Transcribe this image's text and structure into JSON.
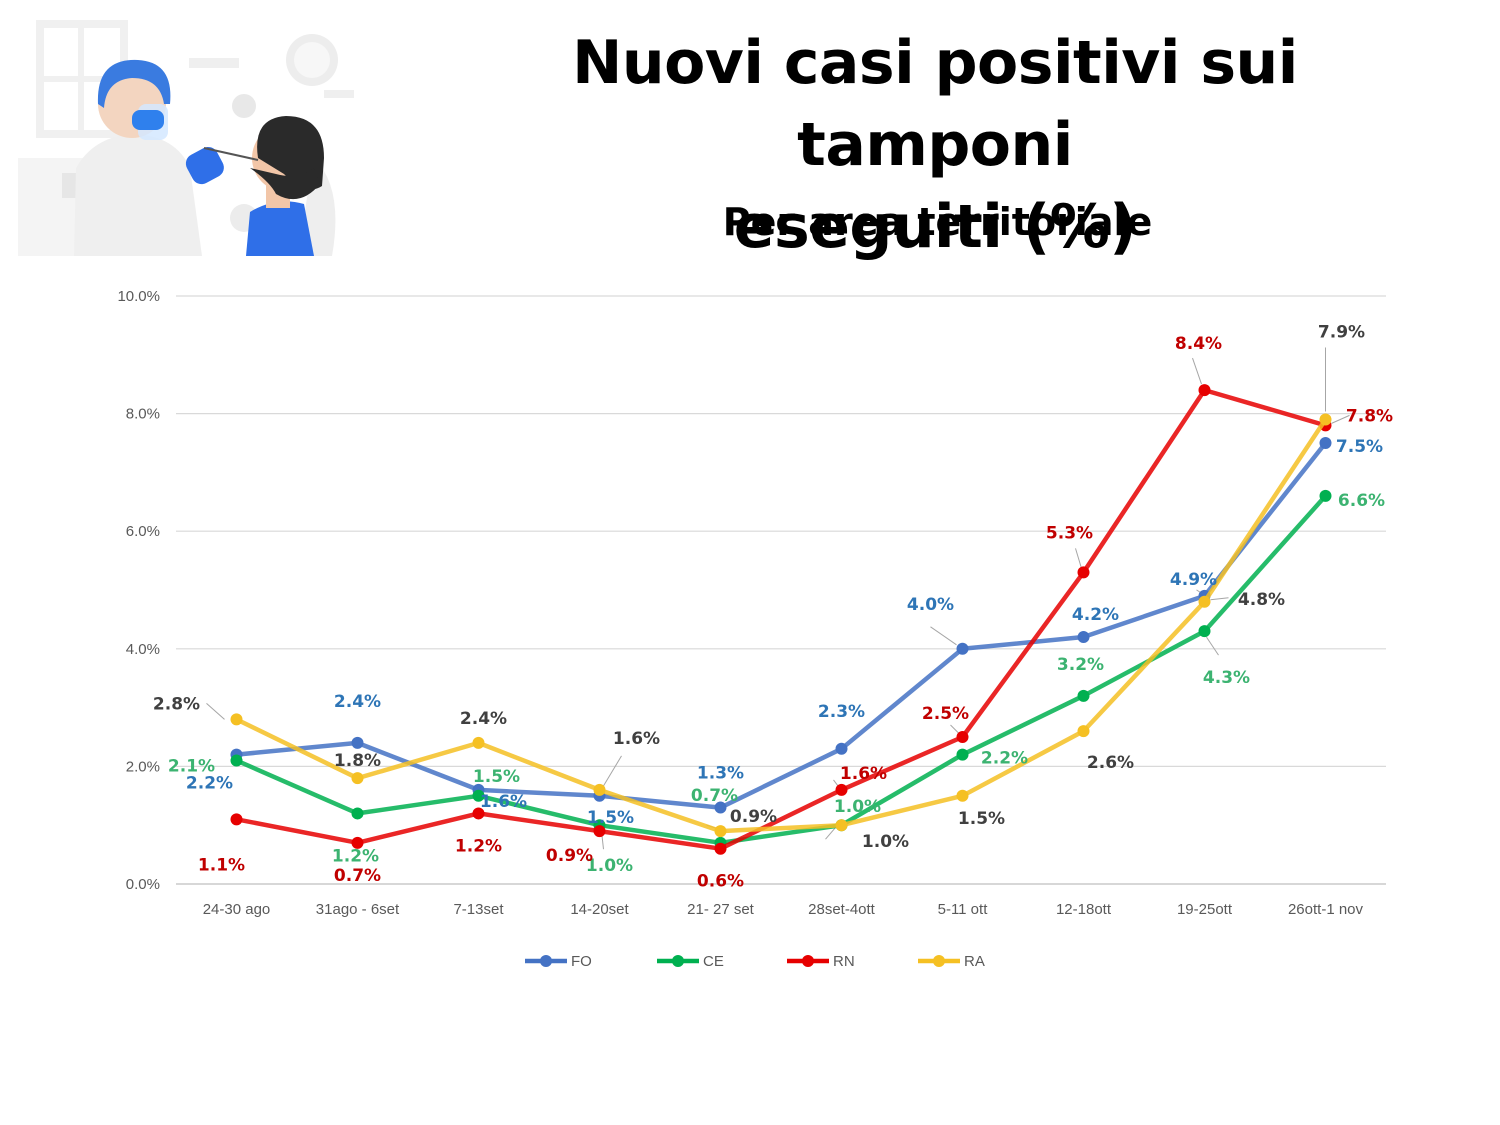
{
  "title": "Nuovi casi positivi sui tamponi eseguiti (%)",
  "subtitle": "Per area territoriale",
  "illustration": "doctor-swab-test-illustration",
  "colors": {
    "FO": "#4472c4",
    "CE": "#00b050",
    "RN": "#e60000",
    "RA": "#f5c023"
  },
  "chart_data": {
    "type": "line",
    "categories": [
      "24-30 ago",
      "31ago - 6set",
      "7-13set",
      "14-20set",
      "21- 27 set",
      "28set-4ott",
      "5-11 ott",
      "12-18ott",
      "19-25ott",
      "26ott-1 nov"
    ],
    "ylim": [
      0,
      10
    ],
    "yticks": [
      "0.0%",
      "2.0%",
      "4.0%",
      "6.0%",
      "8.0%",
      "10.0%"
    ],
    "grid": true,
    "legend_position": "bottom",
    "series": [
      {
        "name": "FO",
        "values": [
          2.2,
          2.4,
          1.6,
          1.5,
          1.3,
          2.3,
          4.0,
          4.2,
          4.9,
          7.5
        ],
        "labels": [
          "2.2%",
          "2.4%",
          "1.6%",
          "1.5%",
          "1.3%",
          "2.3%",
          "4.0%",
          "4.2%",
          "4.9%",
          "7.5%"
        ]
      },
      {
        "name": "CE",
        "values": [
          2.1,
          1.2,
          1.5,
          1.0,
          0.7,
          1.0,
          2.2,
          3.2,
          4.3,
          6.6
        ],
        "labels": [
          "2.1%",
          "1.2%",
          "1.5%",
          "1.0%",
          "0.7%",
          "1.0%",
          "2.2%",
          "3.2%",
          "4.3%",
          "6.6%"
        ]
      },
      {
        "name": "RN",
        "values": [
          1.1,
          0.7,
          1.2,
          0.9,
          0.6,
          1.6,
          2.5,
          5.3,
          8.4,
          7.8
        ],
        "labels": [
          "1.1%",
          "0.7%",
          "1.2%",
          "0.9%",
          "0.6%",
          "1.6%",
          "2.5%",
          "5.3%",
          "8.4%",
          "7.8%"
        ]
      },
      {
        "name": "RA",
        "values": [
          2.8,
          1.8,
          2.4,
          1.6,
          0.9,
          1.0,
          1.5,
          2.6,
          4.8,
          7.9
        ],
        "labels": [
          "2.8%",
          "1.8%",
          "2.4%",
          "1.6%",
          "0.9%",
          "1.0%",
          "1.5%",
          "2.6%",
          "4.8%",
          "7.9%"
        ]
      }
    ]
  }
}
